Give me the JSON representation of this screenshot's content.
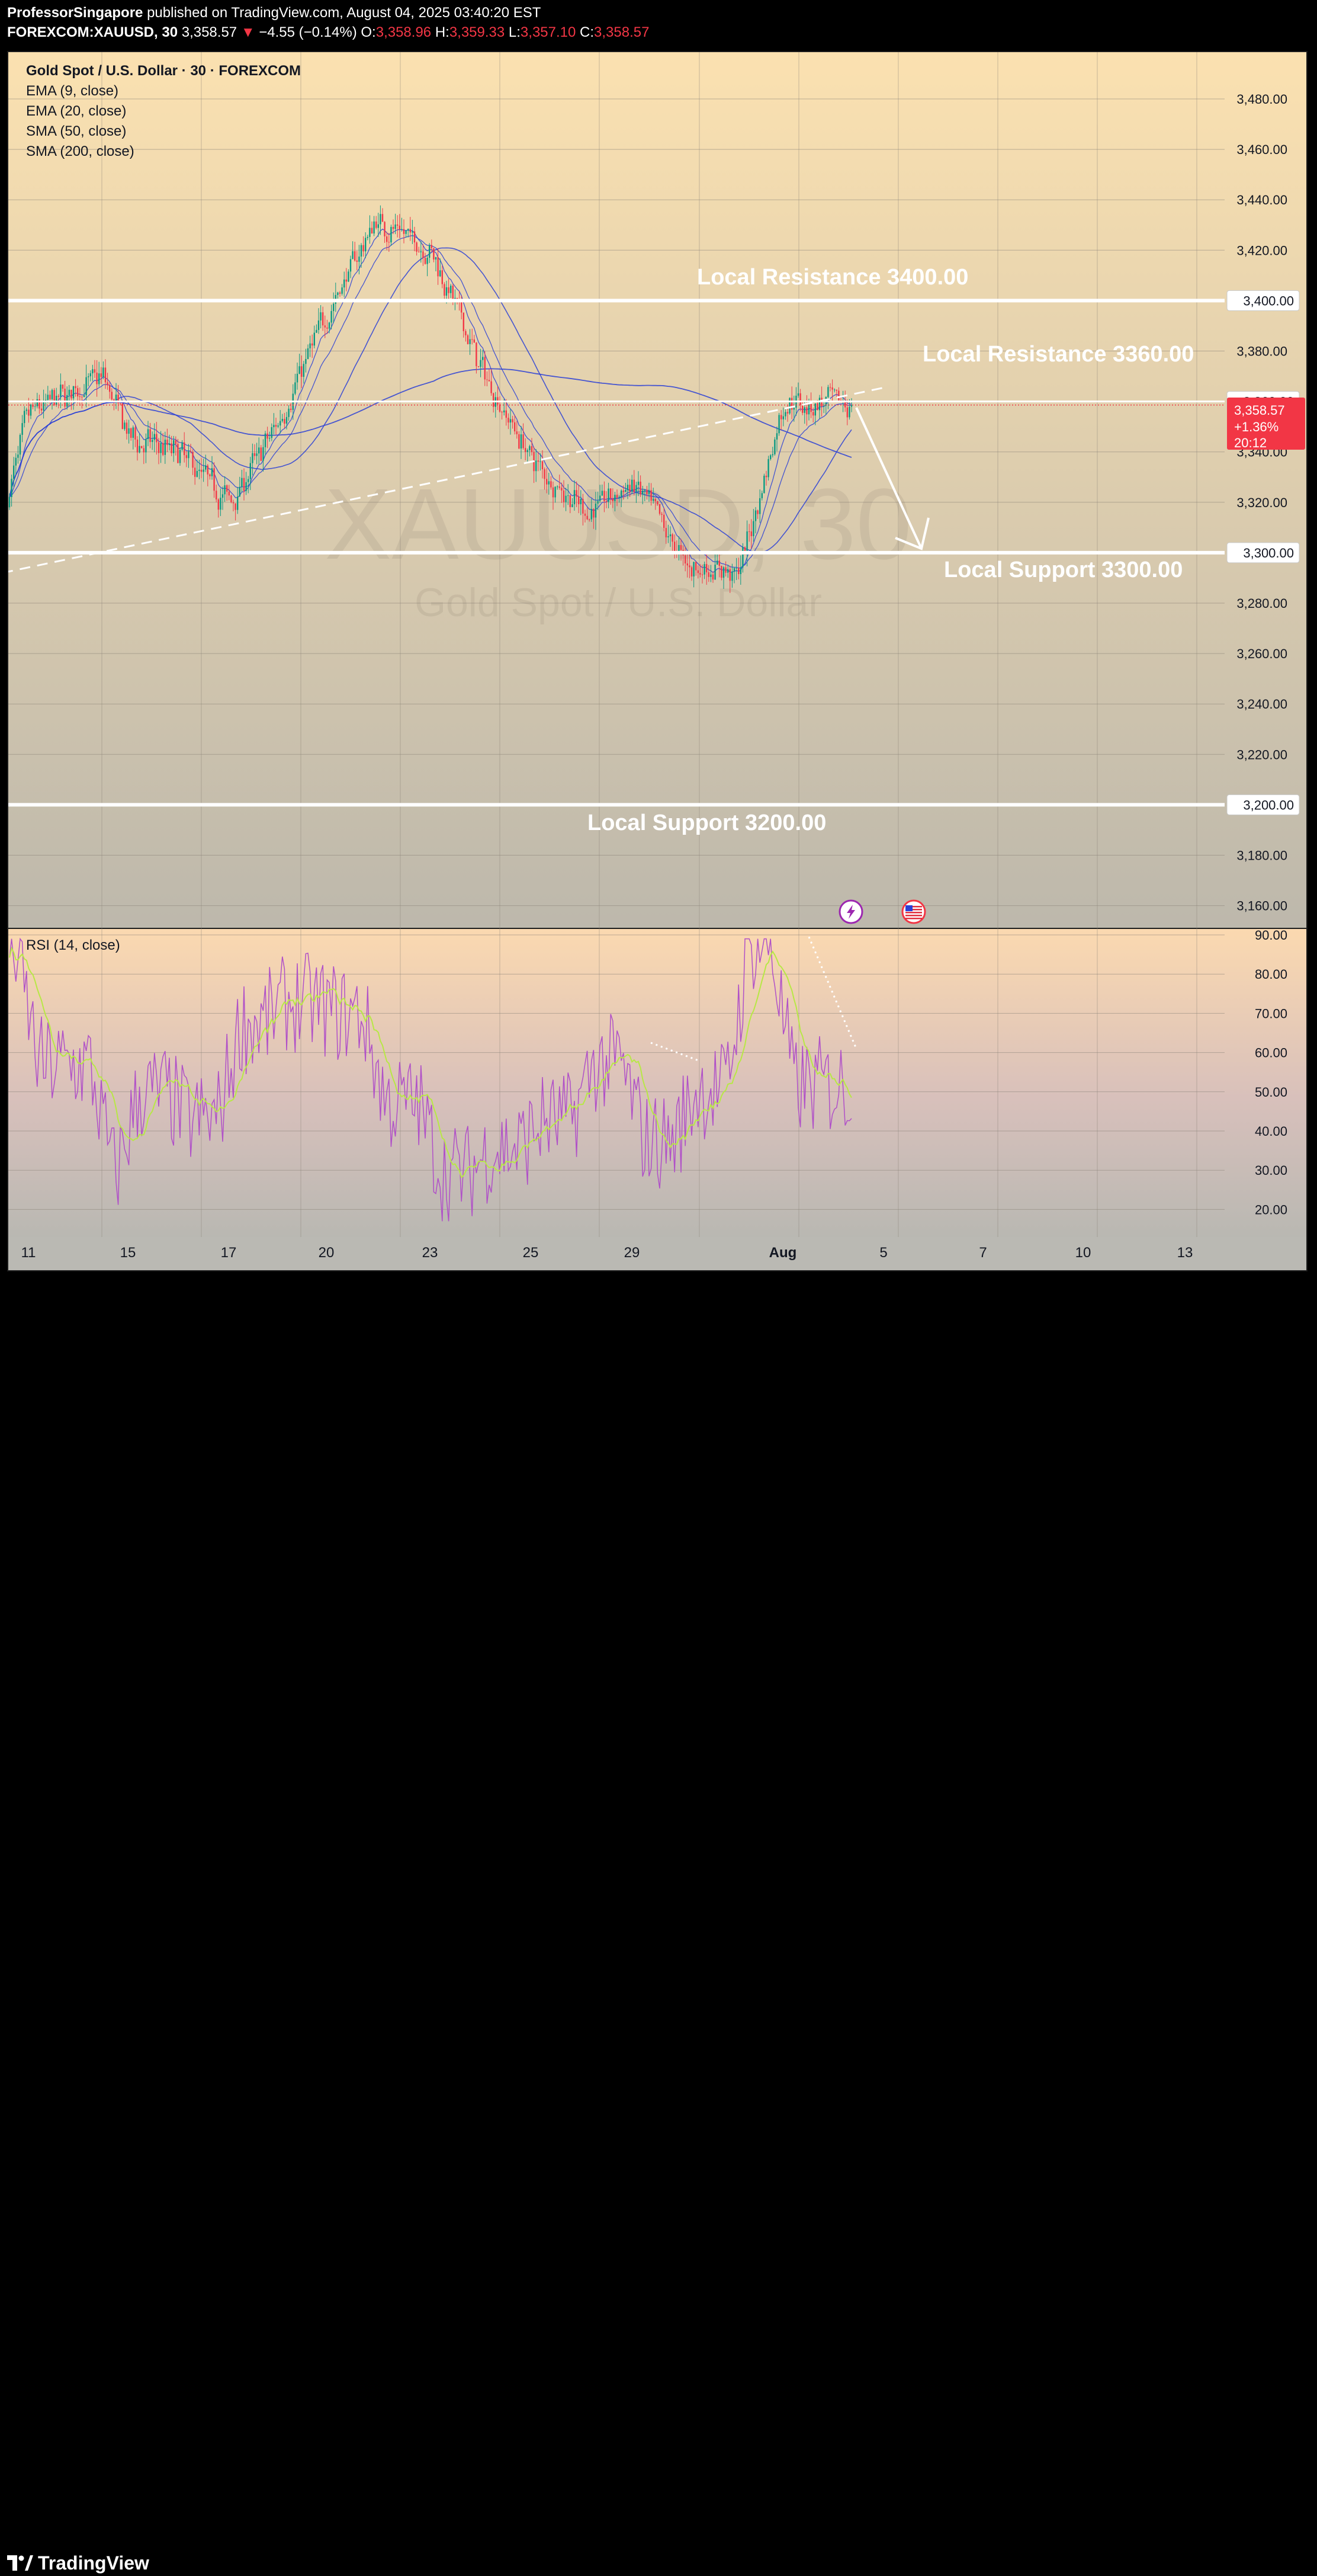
{
  "header": {
    "author": "ProfessorSingapore",
    "published_text": "published on TradingView.com, August 04, 2025 03:40:20 EST",
    "symbol": "FOREXCOM:XAUUSD, 30",
    "last_price": "3,358.57",
    "change_arrow": "▼",
    "change": "−4.55 (−0.14%)",
    "o_label": "O:",
    "o_value": "3,358.96",
    "h_label": "H:",
    "h_value": "3,359.33",
    "l_label": "L:",
    "l_value": "3,357.10",
    "c_label": "C:",
    "c_value": "3,358.57"
  },
  "legend": {
    "title": "Gold Spot / U.S. Dollar · 30 · FOREXCOM",
    "indicators": [
      "EMA (9, close)",
      "EMA (20, close)",
      "SMA (50, close)",
      "SMA (200, close)"
    ],
    "rsi": "RSI (14, close)"
  },
  "watermark": {
    "symbol": "XAUUSD, 30",
    "name": "Gold Spot / U.S. Dollar"
  },
  "price_axis": {
    "ticks": [
      "3,480.00",
      "3,460.00",
      "3,440.00",
      "3,420.00",
      "3,400.00",
      "3,380.00",
      "3,360.00",
      "3,340.00",
      "3,320.00",
      "3,300.00",
      "3,280.00",
      "3,260.00",
      "3,240.00",
      "3,220.00",
      "3,200.00",
      "3,180.00",
      "3,160.00"
    ],
    "tick_values": [
      3480,
      3460,
      3440,
      3420,
      3400,
      3380,
      3360,
      3340,
      3320,
      3300,
      3280,
      3260,
      3240,
      3220,
      3200,
      3180,
      3160
    ],
    "boxed_levels": [
      "3,400.00",
      "3,360.00",
      "3,300.00",
      "3,200.00"
    ],
    "current": {
      "price": "3,358.57",
      "change": "+1.36%",
      "countdown": "20:12"
    }
  },
  "rsi_axis": {
    "ticks": [
      "90.00",
      "80.00",
      "70.00",
      "60.00",
      "50.00",
      "40.00",
      "30.00",
      "20.00"
    ],
    "tick_values": [
      90,
      80,
      70,
      60,
      50,
      40,
      30,
      20
    ]
  },
  "time_axis": {
    "labels": [
      "11",
      "15",
      "17",
      "20",
      "23",
      "25",
      "29",
      "Aug",
      "5",
      "7",
      "10",
      "13"
    ]
  },
  "annotations": {
    "resistance_3400": "Local Resistance 3400.00",
    "resistance_3360": "Local Resistance 3360.00",
    "support_3300": "Local Support 3300.00",
    "support_3200": "Local Support 3200.00"
  },
  "colors": {
    "bull": "#089981",
    "bear": "#f23645",
    "ma": "#2a3fd6",
    "rsi": "#b050c8",
    "rsi_ma": "#b7e845",
    "level": "#ffffff",
    "bg_top": "#fbe1b0",
    "bg_bottom": "#b9b8b2"
  },
  "icons": [
    "lightning-event-icon",
    "us-flag-event-icon"
  ],
  "footer": {
    "brand": "TradingView"
  },
  "chart_data": {
    "type": "candlestick",
    "title": "Gold Spot / U.S. Dollar · 30 · FOREXCOM",
    "price_range": [
      3155,
      3500
    ],
    "rsi_range": [
      15,
      92
    ],
    "approx_close_path": {
      "x": [
        "Jul 10",
        "Jul 11",
        "Jul 14",
        "Jul 15",
        "Jul 16",
        "Jul 17",
        "Jul 18",
        "Jul 21",
        "Jul 22",
        "Jul 23",
        "Jul 24",
        "Jul 25",
        "Jul 28",
        "Jul 29",
        "Jul 30",
        "Jul 31",
        "Aug 1",
        "Aug 4"
      ],
      "y": [
        3318,
        3355,
        3370,
        3345,
        3340,
        3320,
        3350,
        3395,
        3432,
        3420,
        3372,
        3337,
        3316,
        3327,
        3295,
        3292,
        3360,
        3358.57
      ]
    },
    "levels": [
      3400,
      3360,
      3300,
      3200
    ],
    "projection": "down-arrow toward 3300",
    "last": 3358.57
  }
}
